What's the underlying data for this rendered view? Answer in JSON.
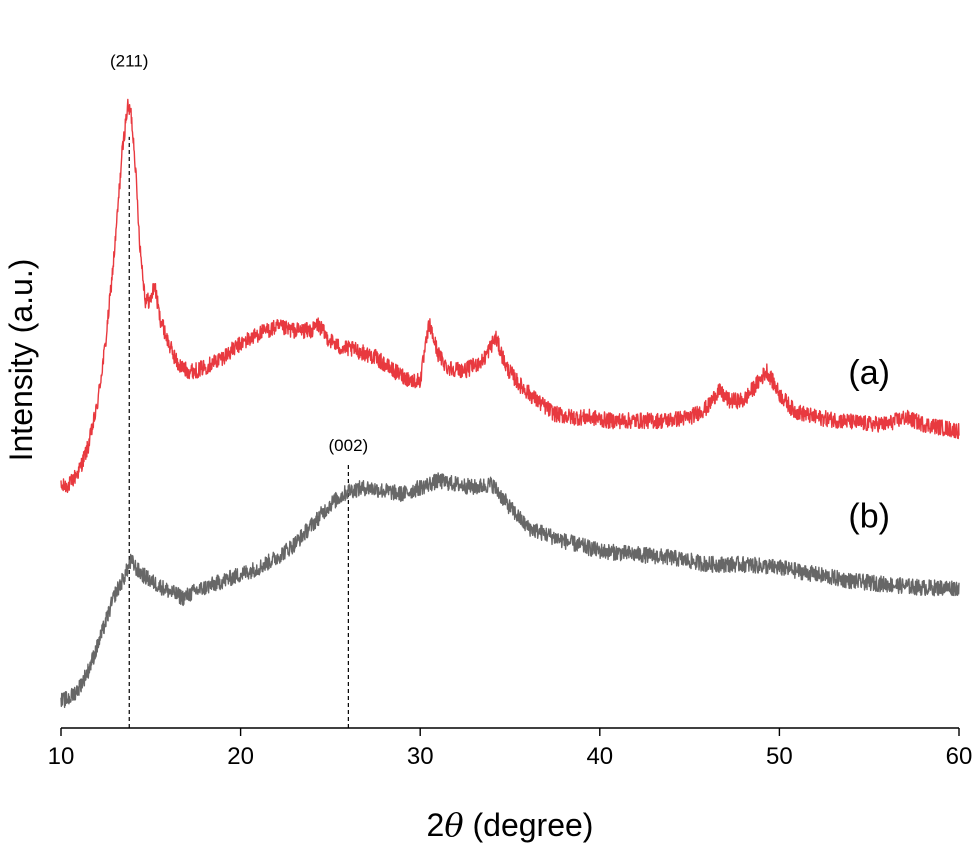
{
  "chart_data": {
    "type": "line",
    "xlabel": "2θ (degree)",
    "xlabel_prefix": "2",
    "xlabel_symbol": "θ",
    "xlabel_suffix": " (degree)",
    "ylabel": "Intensity (a.u.)",
    "xlim": [
      10,
      60
    ],
    "x_ticks": [
      10,
      20,
      30,
      40,
      50,
      60
    ],
    "x_tick_labels": [
      "10",
      "20",
      "30",
      "40",
      "50",
      "60"
    ],
    "y_ticks": "none",
    "ylim": [
      0,
      100
    ],
    "grid": false,
    "legend": "none",
    "series": [
      {
        "name": "(a)",
        "color": "#e8393f",
        "noise": 1.2,
        "points": [
          [
            10.0,
            36.0
          ],
          [
            10.5,
            36.5
          ],
          [
            11.0,
            38.5
          ],
          [
            11.5,
            42.0
          ],
          [
            12.0,
            48.0
          ],
          [
            12.5,
            58.0
          ],
          [
            13.0,
            72.0
          ],
          [
            13.4,
            86.0
          ],
          [
            13.7,
            93.0
          ],
          [
            13.9,
            92.0
          ],
          [
            14.1,
            86.0
          ],
          [
            14.4,
            72.0
          ],
          [
            14.7,
            64.0
          ],
          [
            15.0,
            64.0
          ],
          [
            15.2,
            66.5
          ],
          [
            15.5,
            61.5
          ],
          [
            16.0,
            57.5
          ],
          [
            16.5,
            54.5
          ],
          [
            17.0,
            53.5
          ],
          [
            17.5,
            53.5
          ],
          [
            18.0,
            54.0
          ],
          [
            19.0,
            55.5
          ],
          [
            20.0,
            57.5
          ],
          [
            21.0,
            59.0
          ],
          [
            22.0,
            60.0
          ],
          [
            23.0,
            59.5
          ],
          [
            24.0,
            59.5
          ],
          [
            24.3,
            60.5
          ],
          [
            24.8,
            58.5
          ],
          [
            25.5,
            57.0
          ],
          [
            26.5,
            56.5
          ],
          [
            27.5,
            55.5
          ],
          [
            28.5,
            53.5
          ],
          [
            29.5,
            52.0
          ],
          [
            30.0,
            52.0
          ],
          [
            30.5,
            60.5
          ],
          [
            31.0,
            56.0
          ],
          [
            31.5,
            54.0
          ],
          [
            32.5,
            53.5
          ],
          [
            33.5,
            55.0
          ],
          [
            34.2,
            58.5
          ],
          [
            34.8,
            54.0
          ],
          [
            35.5,
            51.5
          ],
          [
            36.5,
            49.0
          ],
          [
            37.5,
            47.0
          ],
          [
            38.5,
            46.5
          ],
          [
            39.5,
            46.5
          ],
          [
            40.5,
            46.0
          ],
          [
            42.0,
            46.0
          ],
          [
            43.5,
            46.0
          ],
          [
            45.0,
            46.5
          ],
          [
            46.0,
            48.0
          ],
          [
            46.6,
            50.5
          ],
          [
            47.2,
            49.0
          ],
          [
            48.0,
            49.0
          ],
          [
            48.6,
            51.0
          ],
          [
            49.3,
            53.5
          ],
          [
            50.0,
            50.0
          ],
          [
            50.8,
            47.5
          ],
          [
            52.0,
            46.5
          ],
          [
            53.5,
            46.0
          ],
          [
            55.0,
            45.5
          ],
          [
            56.0,
            45.5
          ],
          [
            57.0,
            46.5
          ],
          [
            58.0,
            45.5
          ],
          [
            59.0,
            45.0
          ],
          [
            60.0,
            44.5
          ]
        ]
      },
      {
        "name": "(b)",
        "color": "#676767",
        "noise": 1.2,
        "points": [
          [
            10.0,
            4.0
          ],
          [
            10.5,
            4.5
          ],
          [
            11.0,
            6.0
          ],
          [
            11.5,
            8.5
          ],
          [
            12.0,
            12.0
          ],
          [
            12.5,
            16.0
          ],
          [
            13.0,
            20.0
          ],
          [
            13.5,
            22.5
          ],
          [
            13.9,
            25.0
          ],
          [
            14.3,
            23.5
          ],
          [
            15.0,
            22.0
          ],
          [
            16.0,
            20.5
          ],
          [
            16.8,
            19.5
          ],
          [
            17.5,
            20.5
          ],
          [
            18.5,
            21.5
          ],
          [
            20.0,
            23.0
          ],
          [
            21.0,
            24.0
          ],
          [
            22.0,
            25.5
          ],
          [
            23.0,
            27.5
          ],
          [
            24.0,
            30.5
          ],
          [
            25.0,
            33.5
          ],
          [
            26.0,
            35.5
          ],
          [
            27.0,
            36.0
          ],
          [
            28.0,
            35.5
          ],
          [
            29.0,
            35.0
          ],
          [
            30.0,
            36.0
          ],
          [
            31.0,
            37.0
          ],
          [
            32.0,
            36.5
          ],
          [
            33.0,
            36.0
          ],
          [
            34.0,
            36.5
          ],
          [
            35.0,
            33.0
          ],
          [
            36.0,
            30.0
          ],
          [
            37.0,
            29.0
          ],
          [
            38.0,
            28.0
          ],
          [
            40.0,
            26.5
          ],
          [
            42.0,
            26.0
          ],
          [
            44.0,
            25.5
          ],
          [
            46.0,
            24.5
          ],
          [
            48.0,
            24.5
          ],
          [
            50.0,
            24.0
          ],
          [
            52.0,
            23.0
          ],
          [
            54.0,
            22.0
          ],
          [
            56.0,
            21.5
          ],
          [
            58.0,
            21.0
          ],
          [
            60.0,
            21.0
          ]
        ]
      }
    ],
    "series_labels": [
      {
        "text": "(a)",
        "x": 55.0,
        "y": 51.5
      },
      {
        "text": "(b)",
        "x": 55.0,
        "y": 30.0
      }
    ],
    "annotations": [
      {
        "text": "(211)",
        "x": 13.8,
        "y_bottom": 0,
        "y_top": 88.5,
        "label_y": 99.0,
        "dashed_line": true
      },
      {
        "text": "(002)",
        "x": 26.0,
        "y_bottom": 0,
        "y_top": 39.5,
        "label_y": 41.5,
        "dashed_line": true
      }
    ]
  }
}
